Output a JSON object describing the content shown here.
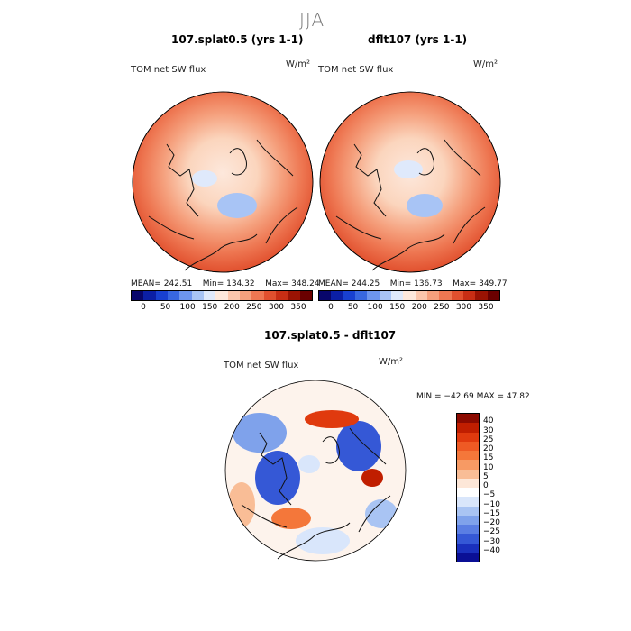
{
  "season": "JJA",
  "panels": [
    {
      "title": "107.splat0.5 (yrs 1-1)",
      "variable": "TOM net SW flux",
      "units": "W/m²",
      "stats": {
        "mean_label": "MEAN=",
        "mean": "242.51",
        "min_label": "Min=",
        "min": "134.32",
        "max_label": "Max=",
        "max": "348.24"
      }
    },
    {
      "title": "dflt107 (yrs 1-1)",
      "variable": "TOM net SW flux",
      "units": "W/m²",
      "stats": {
        "mean_label": "MEAN=",
        "mean": "244.25",
        "min_label": "Min=",
        "min": "136.73",
        "max_label": "Max=",
        "max": "349.77"
      }
    }
  ],
  "colorbar": {
    "ticks": [
      "0",
      "50",
      "100",
      "150",
      "200",
      "250",
      "300",
      "350"
    ],
    "colors": [
      "#08066b",
      "#0b1fa6",
      "#1840d0",
      "#3867e0",
      "#6d95ee",
      "#a8c4f5",
      "#dfe9fb",
      "#fde8dc",
      "#fbc6ac",
      "#f5a07d",
      "#ee7752",
      "#e1502e",
      "#c82e14",
      "#9a1303",
      "#6a0000"
    ]
  },
  "diff": {
    "title": "107.splat0.5 - dflt107",
    "variable": "TOM net SW flux",
    "units": "W/m²",
    "range_text": "MIN = −42.69 MAX =   47.82",
    "ticks": [
      "40",
      "30",
      "25",
      "20",
      "15",
      "10",
      "5",
      "0",
      "−5",
      "−10",
      "−15",
      "−20",
      "−25",
      "−30",
      "−40"
    ],
    "colors": [
      "#8b0a00",
      "#c01e00",
      "#e03a0e",
      "#ee5a24",
      "#f4773a",
      "#f79a64",
      "#f9bd96",
      "#fde7d8",
      "#ffffff",
      "#d9e6fb",
      "#a9c4f3",
      "#7fa2eb",
      "#5a7ee3",
      "#3558d6",
      "#1a30bd",
      "#0a0f95"
    ]
  }
}
